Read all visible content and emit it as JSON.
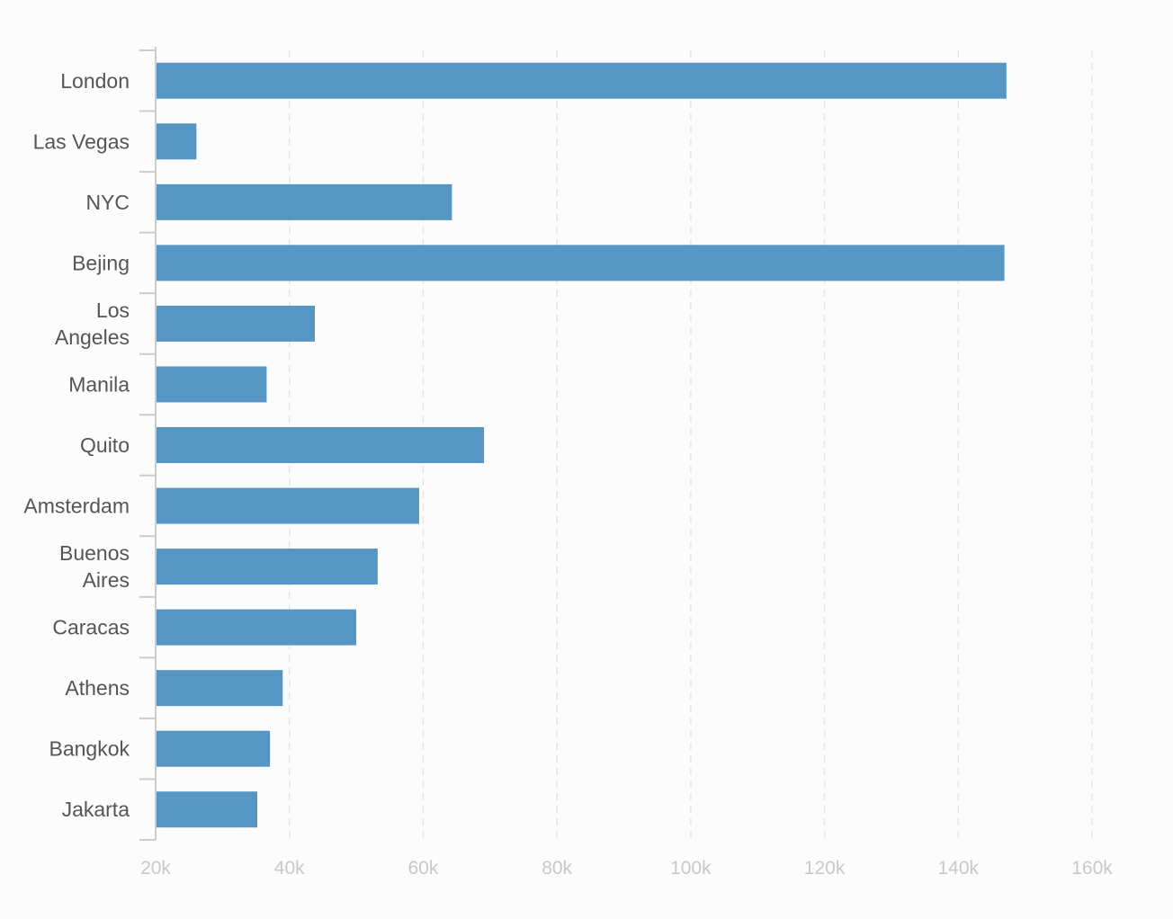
{
  "chart_data": {
    "type": "bar",
    "orientation": "horizontal",
    "title": "",
    "xlabel": "",
    "ylabel": "",
    "categories": [
      "London",
      "Las Vegas",
      "NYC",
      "Bejing",
      "Los Angeles",
      "Manila",
      "Quito",
      "Amsterdam",
      "Buenos Aires",
      "Caracas",
      "Athens",
      "Bangkok",
      "Jakarta"
    ],
    "category_lines": [
      [
        "London"
      ],
      [
        "Las Vegas"
      ],
      [
        "NYC"
      ],
      [
        "Bejing"
      ],
      [
        "Los",
        "Angeles"
      ],
      [
        "Manila"
      ],
      [
        "Quito"
      ],
      [
        "Amsterdam"
      ],
      [
        "Buenos",
        "Aires"
      ],
      [
        "Caracas"
      ],
      [
        "Athens"
      ],
      [
        "Bangkok"
      ],
      [
        "Jakarta"
      ]
    ],
    "values": [
      147200,
      26100,
      64300,
      146900,
      43800,
      36600,
      69100,
      59400,
      53200,
      50000,
      39000,
      37100,
      35200
    ],
    "xlim": [
      20000,
      160000
    ],
    "xticks": [
      20000,
      40000,
      60000,
      80000,
      100000,
      120000,
      140000,
      160000
    ],
    "xtick_labels": [
      "20k",
      "40k",
      "60k",
      "80k",
      "100k",
      "120k",
      "140k",
      "160k"
    ],
    "grid": true,
    "bar_color": "#5596c4"
  }
}
